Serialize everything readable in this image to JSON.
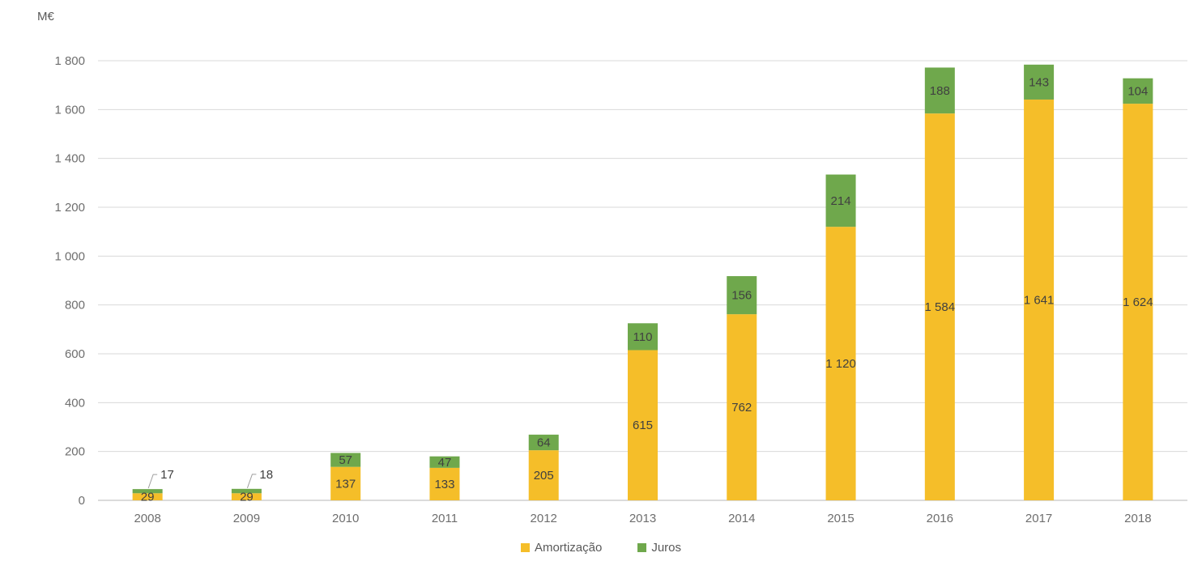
{
  "chart_data": {
    "type": "bar",
    "stacked": true,
    "unit_label": "M€",
    "title": "",
    "xlabel": "",
    "ylabel": "M€",
    "categories": [
      "2008",
      "2009",
      "2010",
      "2011",
      "2012",
      "2013",
      "2014",
      "2015",
      "2016",
      "2017",
      "2018"
    ],
    "series": [
      {
        "name": "Amortização",
        "color": "#F5BE29",
        "values": [
          29,
          29,
          137,
          133,
          205,
          615,
          762,
          1120,
          1584,
          1641,
          1624
        ],
        "labels": [
          "29",
          "29",
          "137",
          "133",
          "205",
          "615",
          "762",
          "1 120",
          "1 584",
          "1 641",
          "1 624"
        ]
      },
      {
        "name": "Juros",
        "color": "#6FA84C",
        "values": [
          17,
          18,
          57,
          47,
          64,
          110,
          156,
          214,
          188,
          143,
          104
        ],
        "labels": [
          "17",
          "18",
          "57",
          "47",
          "64",
          "110",
          "156",
          "214",
          "188",
          "143",
          "104"
        ]
      }
    ],
    "ylim": [
      0,
      1800
    ],
    "ytick_values": [
      0,
      200,
      400,
      600,
      800,
      1000,
      1200,
      1400,
      1600,
      1800
    ],
    "ytick_labels": [
      "0",
      "200",
      "400",
      "600",
      "800",
      "1 000",
      "1 200",
      "1 400",
      "1 600",
      "1 800"
    ],
    "grid": true,
    "legend_position": "bottom",
    "callout_labels": [
      {
        "category": "2008",
        "series": "Juros"
      },
      {
        "category": "2009",
        "series": "Juros"
      }
    ]
  },
  "colors": {
    "gridline": "#D9D9D9",
    "axis_line": "#CFCFCF",
    "axis_text": "#6E6E6E",
    "data_label": "#404040",
    "leader_line": "#9E9E9E"
  }
}
